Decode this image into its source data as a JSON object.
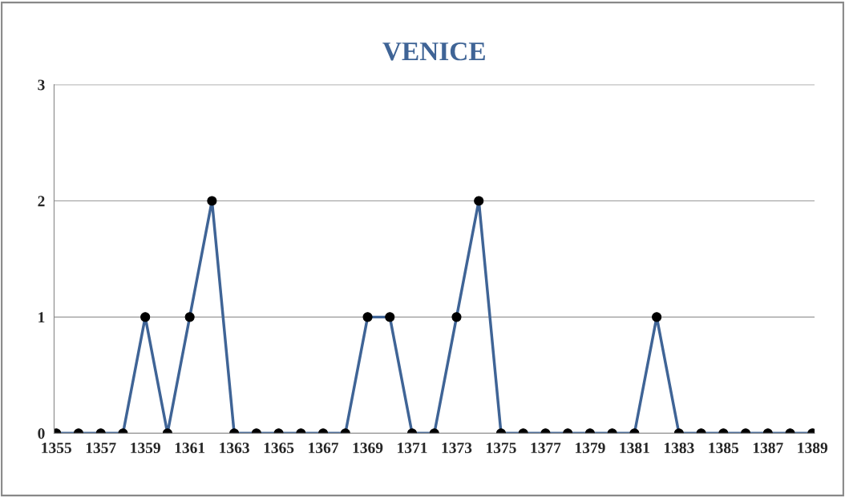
{
  "chart_data": {
    "type": "line",
    "title": "VENICE",
    "categories": [
      "1355",
      null,
      "1357",
      null,
      "1359",
      null,
      "1361",
      null,
      "1363",
      null,
      "1365",
      null,
      "1367",
      null,
      "1369",
      null,
      "1371",
      null,
      "1373",
      null,
      "1375",
      null,
      "1377",
      null,
      "1379",
      null,
      "1381",
      null,
      "1383",
      null,
      "1385",
      null,
      "1387",
      null,
      "1389"
    ],
    "series": [
      {
        "color": "#3f6496",
        "values": [
          0,
          0,
          0,
          0,
          1,
          0,
          1,
          2,
          0,
          0,
          0,
          0,
          0,
          0,
          1,
          1,
          0,
          0,
          1,
          2,
          0,
          0,
          0,
          0,
          0,
          0,
          0,
          1,
          0,
          0,
          0,
          0,
          0,
          0,
          0
        ]
      }
    ],
    "ylim": [
      0,
      3
    ],
    "yticks": [
      0,
      1,
      2,
      3
    ],
    "grid": "y",
    "marker": "circle",
    "line_style": "solid",
    "legend": false
  }
}
